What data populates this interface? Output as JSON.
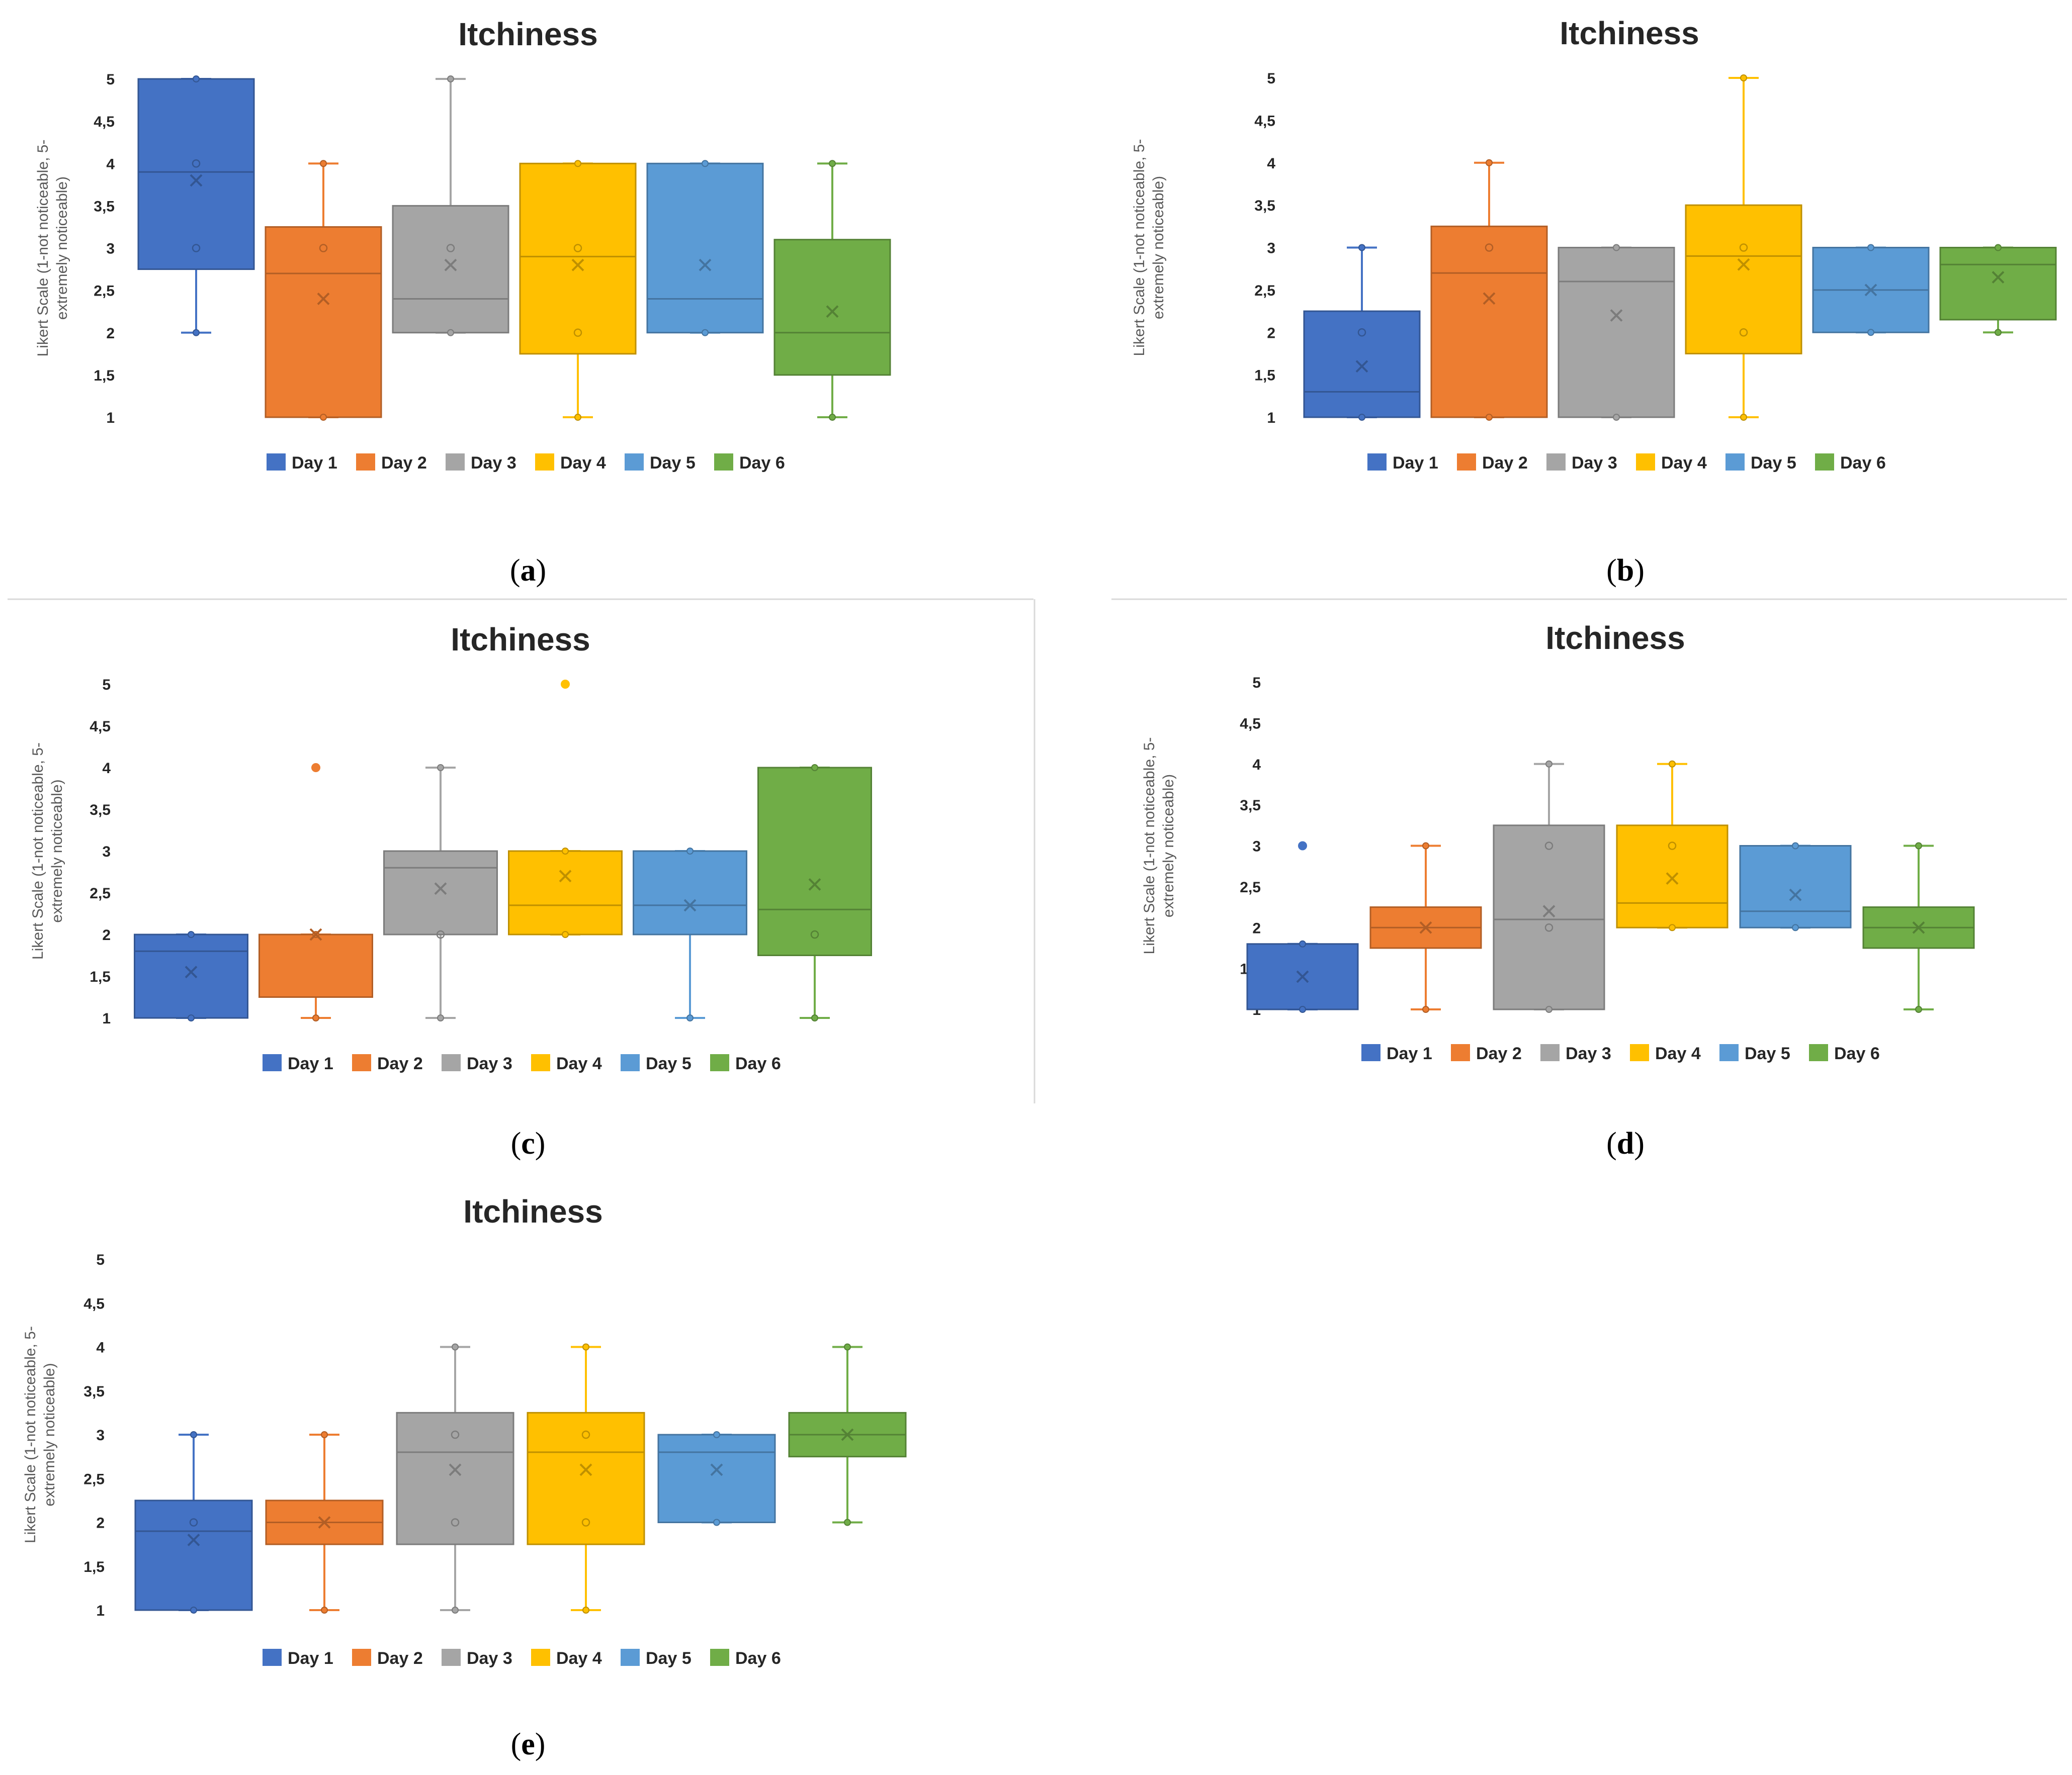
{
  "colors": {
    "Day 1": "#4472C4",
    "Day 2": "#ED7D31",
    "Day 3": "#A5A5A5",
    "Day 4": "#FFC000",
    "Day 5": "#5B9BD5",
    "Day 6": "#70AD47"
  },
  "legend": [
    "Day 1",
    "Day 2",
    "Day 3",
    "Day 4",
    "Day 5",
    "Day 6"
  ],
  "ylabel_lines": [
    "Likert Scale (1-not noticeable, 5-",
    "extremely noticeable)"
  ],
  "ytick_labels": [
    "1",
    "1,5",
    "2",
    "2,5",
    "3",
    "3,5",
    "4",
    "4,5",
    "5"
  ],
  "chart_data": [
    {
      "panel": "a",
      "type": "boxplot",
      "title": "Itchiness",
      "ylabel": "Likert Scale (1-not noticeable, 5-extremely noticeable)",
      "ylim": [
        1,
        5
      ],
      "categories": [
        "Day 1",
        "Day 2",
        "Day 3",
        "Day 4",
        "Day 5",
        "Day 6"
      ],
      "boxes": [
        {
          "min": 2,
          "q1": 2.75,
          "median": 3.9,
          "q3": 5,
          "max": 5,
          "mean": 3.8,
          "points": [
            3,
            4
          ],
          "outliers": []
        },
        {
          "min": 1,
          "q1": 1,
          "median": 2.7,
          "q3": 3.25,
          "max": 4,
          "mean": 2.4,
          "points": [
            3
          ],
          "outliers": []
        },
        {
          "min": 2,
          "q1": 2,
          "median": 2.4,
          "q3": 3.5,
          "max": 5,
          "mean": 2.8,
          "points": [
            3
          ],
          "outliers": []
        },
        {
          "min": 1,
          "q1": 1.75,
          "median": 2.9,
          "q3": 4,
          "max": 4,
          "mean": 2.8,
          "points": [
            2,
            3
          ],
          "outliers": []
        },
        {
          "min": 2,
          "q1": 2,
          "median": 2.4,
          "q3": 4,
          "max": 4,
          "mean": 2.8,
          "points": [],
          "outliers": []
        },
        {
          "min": 1,
          "q1": 1.5,
          "median": 2,
          "q3": 3.1,
          "max": 4,
          "mean": 2.25,
          "points": [],
          "outliers": []
        }
      ]
    },
    {
      "panel": "b",
      "type": "boxplot",
      "title": "Itchiness",
      "ylabel": "Likert Scale (1-not noticeable, 5-extremely noticeable)",
      "ylim": [
        1,
        5
      ],
      "categories": [
        "Day 1",
        "Day 2",
        "Day 3",
        "Day 4",
        "Day 5",
        "Day 6"
      ],
      "boxes": [
        {
          "min": 1,
          "q1": 1,
          "median": 1.3,
          "q3": 2.25,
          "max": 3,
          "mean": 1.6,
          "points": [
            2
          ],
          "outliers": []
        },
        {
          "min": 1,
          "q1": 1,
          "median": 2.7,
          "q3": 3.25,
          "max": 4,
          "mean": 2.4,
          "points": [
            3
          ],
          "outliers": []
        },
        {
          "min": 1,
          "q1": 1,
          "median": 2.6,
          "q3": 3,
          "max": 3,
          "mean": 2.2,
          "points": [],
          "outliers": []
        },
        {
          "min": 1,
          "q1": 1.75,
          "median": 2.9,
          "q3": 3.5,
          "max": 5,
          "mean": 2.8,
          "points": [
            2,
            3
          ],
          "outliers": []
        },
        {
          "min": 2,
          "q1": 2,
          "median": 2.5,
          "q3": 3,
          "max": 3,
          "mean": 2.5,
          "points": [],
          "outliers": []
        },
        {
          "min": 2,
          "q1": 2.15,
          "median": 2.8,
          "q3": 3,
          "max": 3,
          "mean": 2.65,
          "points": [],
          "outliers": []
        }
      ]
    },
    {
      "panel": "c",
      "type": "boxplot",
      "title": "Itchiness",
      "ylabel": "Likert Scale (1-not noticeable, 5-extremely noticeable)",
      "ylim": [
        1,
        5
      ],
      "categories": [
        "Day 1",
        "Day 2",
        "Day 3",
        "Day 4",
        "Day 5",
        "Day 6"
      ],
      "boxes": [
        {
          "min": 1,
          "q1": 1,
          "median": 1.8,
          "q3": 2,
          "max": 2,
          "mean": 1.55,
          "points": [],
          "outliers": []
        },
        {
          "min": 1,
          "q1": 1.25,
          "median": 2,
          "q3": 2,
          "max": 2,
          "mean": 2,
          "points": [],
          "outliers": [
            4
          ]
        },
        {
          "min": 1,
          "q1": 2,
          "median": 2.8,
          "q3": 3,
          "max": 4,
          "mean": 2.55,
          "points": [
            2
          ],
          "outliers": []
        },
        {
          "min": 2,
          "q1": 2,
          "median": 2.35,
          "q3": 3,
          "max": 3,
          "mean": 2.7,
          "points": [],
          "outliers": [
            5
          ]
        },
        {
          "min": 1,
          "q1": 2,
          "median": 2.35,
          "q3": 3,
          "max": 3,
          "mean": 2.35,
          "points": [],
          "outliers": []
        },
        {
          "min": 1,
          "q1": 1.75,
          "median": 2.3,
          "q3": 4,
          "max": 4,
          "mean": 2.6,
          "points": [
            2
          ],
          "outliers": []
        }
      ]
    },
    {
      "panel": "d",
      "type": "boxplot",
      "title": "Itchiness",
      "ylabel": "Likert Scale (1-not noticeable, 5-extremely noticeable)",
      "ylim": [
        1,
        5
      ],
      "categories": [
        "Day 1",
        "Day 2",
        "Day 3",
        "Day 4",
        "Day 5",
        "Day 6"
      ],
      "boxes": [
        {
          "min": 1,
          "q1": 1,
          "median": 1,
          "q3": 1.8,
          "max": 1.8,
          "mean": 1.4,
          "points": [],
          "outliers": [
            3
          ]
        },
        {
          "min": 1,
          "q1": 1.75,
          "median": 2,
          "q3": 2.25,
          "max": 3,
          "mean": 2,
          "points": [],
          "outliers": []
        },
        {
          "min": 1,
          "q1": 1,
          "median": 2.1,
          "q3": 3.25,
          "max": 4,
          "mean": 2.2,
          "points": [
            2,
            3
          ],
          "outliers": []
        },
        {
          "min": 2,
          "q1": 2,
          "median": 2.3,
          "q3": 3.25,
          "max": 4,
          "mean": 2.6,
          "points": [
            3
          ],
          "outliers": []
        },
        {
          "min": 2,
          "q1": 2,
          "median": 2.2,
          "q3": 3,
          "max": 3,
          "mean": 2.4,
          "points": [],
          "outliers": []
        },
        {
          "min": 1,
          "q1": 1.75,
          "median": 2,
          "q3": 2.25,
          "max": 3,
          "mean": 2,
          "points": [],
          "outliers": []
        }
      ]
    },
    {
      "panel": "e",
      "type": "boxplot",
      "title": "Itchiness",
      "ylabel": "Likert Scale (1-not noticeable, 5-extremely noticeable)",
      "ylim": [
        1,
        5
      ],
      "categories": [
        "Day 1",
        "Day 2",
        "Day 3",
        "Day 4",
        "Day 5",
        "Day 6"
      ],
      "boxes": [
        {
          "min": 1,
          "q1": 1,
          "median": 1.9,
          "q3": 2.25,
          "max": 3,
          "mean": 1.8,
          "points": [
            2
          ],
          "outliers": []
        },
        {
          "min": 1,
          "q1": 1.75,
          "median": 2,
          "q3": 2.25,
          "max": 3,
          "mean": 2,
          "points": [],
          "outliers": []
        },
        {
          "min": 1,
          "q1": 1.75,
          "median": 2.8,
          "q3": 3.25,
          "max": 4,
          "mean": 2.6,
          "points": [
            2,
            3
          ],
          "outliers": []
        },
        {
          "min": 1,
          "q1": 1.75,
          "median": 2.8,
          "q3": 3.25,
          "max": 4,
          "mean": 2.6,
          "points": [
            2,
            3
          ],
          "outliers": []
        },
        {
          "min": 2,
          "q1": 2,
          "median": 2.8,
          "q3": 3,
          "max": 3,
          "mean": 2.6,
          "points": [],
          "outliers": []
        },
        {
          "min": 2,
          "q1": 2.75,
          "median": 3,
          "q3": 3.25,
          "max": 4,
          "mean": 3,
          "points": [],
          "outliers": []
        }
      ]
    }
  ],
  "captions": {
    "a": {
      "open": "(",
      "letter": "a",
      "close": ")"
    },
    "b": {
      "open": "(",
      "letter": "b",
      "close": ")"
    },
    "c": {
      "open": "(",
      "letter": "c",
      "close": ")"
    },
    "d": {
      "open": "(",
      "letter": "d",
      "close": ")"
    },
    "e": {
      "open": "(",
      "letter": "e",
      "close": ")"
    }
  }
}
